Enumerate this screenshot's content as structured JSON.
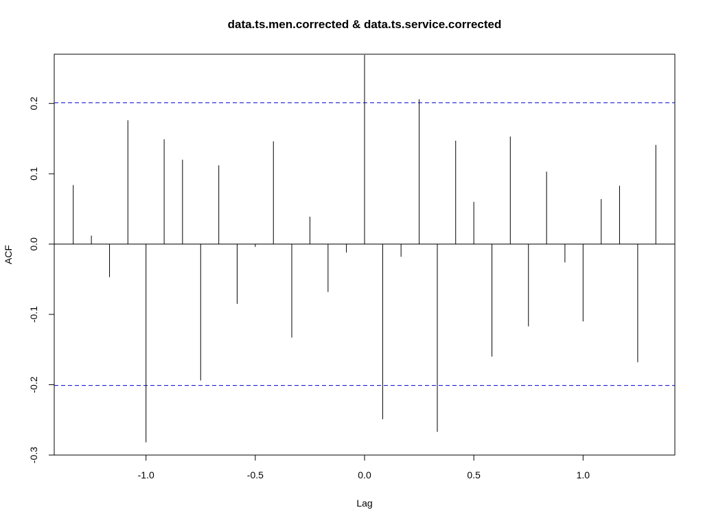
{
  "chart_data": {
    "type": "bar",
    "title": "data.ts.men.corrected & data.ts.service.corrected",
    "xlabel": "Lag",
    "ylabel": "ACF",
    "xlim": [
      -1.42,
      1.42
    ],
    "ylim": [
      -0.3,
      0.27
    ],
    "x_ticks": [
      -1.0,
      -0.5,
      0.0,
      0.5,
      1.0
    ],
    "x_tick_labels": [
      "-1.0",
      "-0.5",
      "0.0",
      "0.5",
      "1.0"
    ],
    "y_ticks": [
      -0.3,
      -0.2,
      -0.1,
      0.0,
      0.1,
      0.2
    ],
    "y_tick_labels": [
      "-0.3",
      "-0.2",
      "-0.1",
      "0.0",
      "0.1",
      "0.2"
    ],
    "confidence_bounds": [
      0.201,
      -0.201
    ],
    "confidence_color": "#0000cc",
    "grid": false,
    "x": [
      -1.333,
      -1.25,
      -1.167,
      -1.083,
      -1.0,
      -0.917,
      -0.833,
      -0.75,
      -0.667,
      -0.583,
      -0.5,
      -0.417,
      -0.333,
      -0.25,
      -0.167,
      -0.083,
      0.0,
      0.083,
      0.167,
      0.25,
      0.333,
      0.417,
      0.5,
      0.583,
      0.667,
      0.75,
      0.833,
      0.917,
      1.0,
      1.083,
      1.167,
      1.25,
      1.333
    ],
    "values": [
      0.084,
      0.012,
      -0.047,
      0.176,
      -0.282,
      0.149,
      0.12,
      -0.194,
      0.112,
      -0.085,
      -0.004,
      0.146,
      -0.133,
      0.039,
      -0.068,
      -0.012,
      0.269,
      -0.249,
      -0.018,
      0.206,
      -0.267,
      0.147,
      0.06,
      -0.16,
      0.153,
      -0.117,
      0.103,
      -0.026,
      -0.11,
      0.064,
      0.083,
      -0.168,
      0.141
    ]
  }
}
